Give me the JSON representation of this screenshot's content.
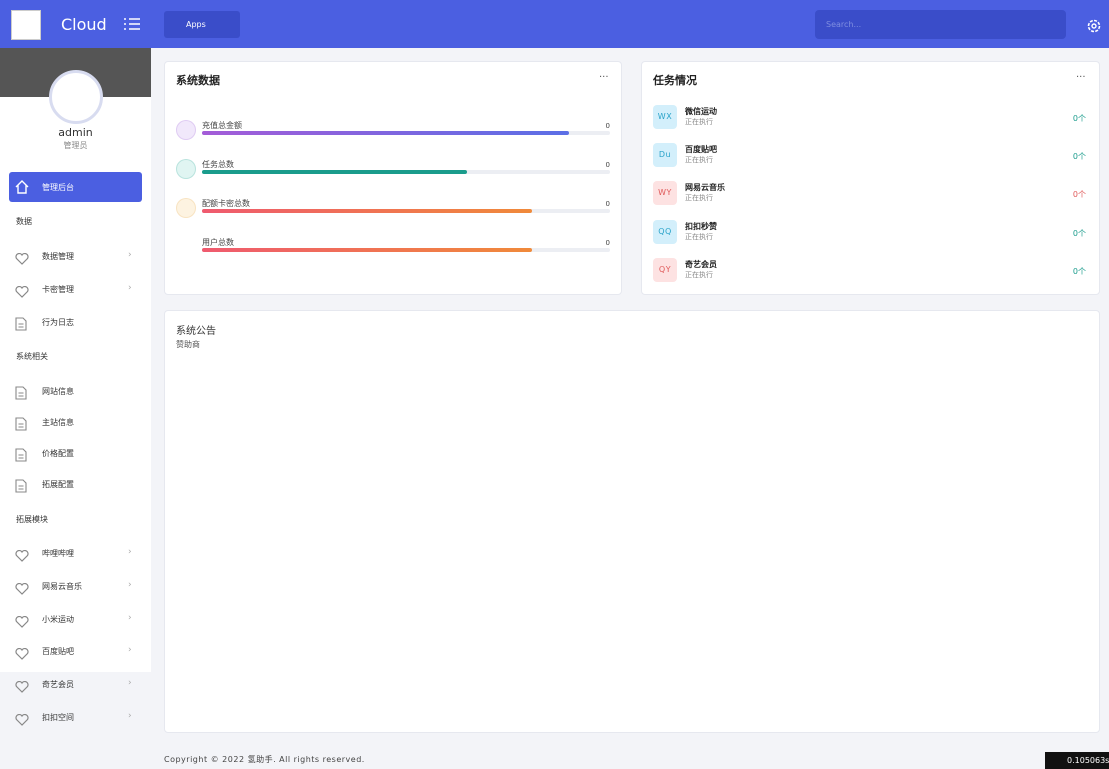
{
  "header": {
    "logo_text": "Cloud",
    "apps": "Apps",
    "search_placeholder": "Search..."
  },
  "sidebar": {
    "user": "admin",
    "role": "管理员",
    "active": "管理后台",
    "groups": [
      {
        "title": "数据",
        "items": [
          "数据管理",
          "卡密管理",
          "行为日志"
        ]
      },
      {
        "title": "系统相关",
        "items": [
          "网站信息",
          "主站信息",
          "价格配置",
          "拓展配置"
        ]
      },
      {
        "title": "拓展模块",
        "items": [
          "哔哩哔哩",
          "网易云音乐",
          "小米运动",
          "百度贴吧",
          "奇艺会员",
          "扣扣空间"
        ]
      }
    ]
  },
  "stats": {
    "title": "系统数据",
    "items": [
      {
        "label": "充值总金额",
        "value": 0
      },
      {
        "label": "任务总数",
        "value": 0
      },
      {
        "label": "配额卡密总数",
        "value": 0
      },
      {
        "label": "用户总数",
        "value": 0
      }
    ]
  },
  "tasks": {
    "title": "任务情况",
    "items": [
      {
        "badge": "WX",
        "name": "微信运动",
        "status": "正在执行",
        "count": "0个"
      },
      {
        "badge": "Du",
        "name": "百度贴吧",
        "status": "正在执行",
        "count": "0个"
      },
      {
        "badge": "WY",
        "name": "网易云音乐",
        "status": "正在执行",
        "count": "0个"
      },
      {
        "badge": "QQ",
        "name": "扣扣秒赞",
        "status": "正在执行",
        "count": "0个"
      },
      {
        "badge": "QY",
        "name": "奇艺会员",
        "status": "正在执行",
        "count": "0个"
      }
    ]
  },
  "notice": {
    "title": "系统公告",
    "text": "赞助商"
  },
  "footer": {
    "copyright": "Copyright © 2022 氢助手. All rights reserved.",
    "timer": "0.105063s"
  }
}
